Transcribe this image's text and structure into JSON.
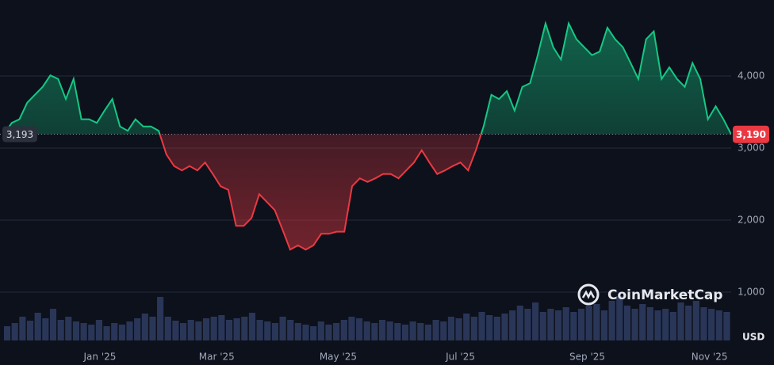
{
  "chart_data": {
    "type": "line",
    "watermark": "CoinMarketCap",
    "currency": "USD",
    "values": [
      3190,
      3350,
      3400,
      3630,
      3740,
      3850,
      4010,
      3960,
      3680,
      3960,
      3400,
      3400,
      3350,
      3520,
      3680,
      3300,
      3240,
      3400,
      3300,
      3300,
      3240,
      2910,
      2750,
      2690,
      2750,
      2690,
      2800,
      2640,
      2470,
      2420,
      1920,
      1920,
      2030,
      2360,
      2250,
      2140,
      1870,
      1590,
      1650,
      1590,
      1650,
      1810,
      1810,
      1840,
      1840,
      2470,
      2580,
      2530,
      2580,
      2640,
      2640,
      2580,
      2690,
      2800,
      2970,
      2800,
      2640,
      2690,
      2750,
      2800,
      2690,
      2970,
      3300,
      3740,
      3680,
      3790,
      3520,
      3850,
      3900,
      4290,
      4730,
      4400,
      4230,
      4730,
      4510,
      4400,
      4290,
      4340,
      4670,
      4510,
      4400,
      4180,
      3960,
      4510,
      4620,
      3960,
      4120,
      3960,
      3850,
      4180,
      3960,
      3400,
      3580,
      3400,
      3190
    ],
    "volume": [
      18,
      22,
      30,
      25,
      35,
      28,
      40,
      26,
      30,
      24,
      22,
      20,
      26,
      18,
      22,
      20,
      24,
      28,
      34,
      30,
      55,
      30,
      25,
      22,
      26,
      24,
      28,
      30,
      32,
      26,
      28,
      30,
      35,
      26,
      24,
      22,
      30,
      26,
      22,
      20,
      18,
      24,
      20,
      22,
      26,
      30,
      28,
      24,
      22,
      26,
      24,
      22,
      20,
      24,
      22,
      20,
      26,
      24,
      30,
      28,
      34,
      30,
      36,
      32,
      30,
      34,
      38,
      44,
      40,
      48,
      36,
      40,
      38,
      42,
      36,
      40,
      44,
      46,
      38,
      50,
      56,
      44,
      40,
      46,
      42,
      38,
      40,
      36,
      48,
      44,
      50,
      42,
      40,
      38,
      36
    ],
    "volume_lim": [
      0,
      100
    ],
    "xlim": [
      0,
      94
    ],
    "xticks": [
      {
        "value": 12.4,
        "label": "Jan '25"
      },
      {
        "value": 27.5,
        "label": "Mar '25"
      },
      {
        "value": 43.2,
        "label": "May '25"
      },
      {
        "value": 59,
        "label": "Jul '25"
      },
      {
        "value": 75.4,
        "label": "Sep '25"
      },
      {
        "value": 91.2,
        "label": "Nov '25"
      }
    ],
    "ylim": [
      330,
      5055
    ],
    "yticks": [
      {
        "value": 1000,
        "label": "1,000"
      },
      {
        "value": 2000,
        "label": "2,000"
      },
      {
        "value": 3000,
        "label": "3,000"
      },
      {
        "value": 4000,
        "label": "4,000"
      }
    ],
    "reference_price": {
      "value": 3193,
      "label": "3,193"
    },
    "current_price": {
      "value": 3190,
      "label": "3,190"
    },
    "colors": {
      "up": "#16c784",
      "down": "#ea3943",
      "volume": "#2a3658"
    },
    "grid": true
  }
}
